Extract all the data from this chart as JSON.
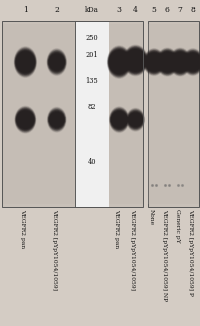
{
  "fig_width": 2.0,
  "fig_height": 3.26,
  "dpi": 100,
  "bg_color": "#d4ccc4",
  "blot_bg": "#c8c0b8",
  "mw_bg": "#f5f5f5",
  "border_color": "#666666",
  "lane_labels_left": [
    "1",
    "2",
    "kDa",
    "3",
    "4"
  ],
  "lane_labels_right": [
    "5",
    "6",
    "7",
    "8"
  ],
  "mw_markers": [
    "250",
    "201",
    "135",
    "82",
    "40"
  ],
  "rotated_labels_left": [
    "VEGFR2 pan",
    "VEGFR2 [pYpY1054/1059]",
    "VEGFR2 pan",
    "VEGFR2 [pYpY1054/1059]"
  ],
  "rotated_labels_right": [
    "None",
    "VEGFR2 [pYpY1054/1059] NP",
    "Generic pY",
    "VEGFR2 [pYpY1054/1059] P"
  ],
  "label_fontsize": 4.3,
  "lane_num_fontsize": 5.5,
  "mw_fontsize": 4.8
}
